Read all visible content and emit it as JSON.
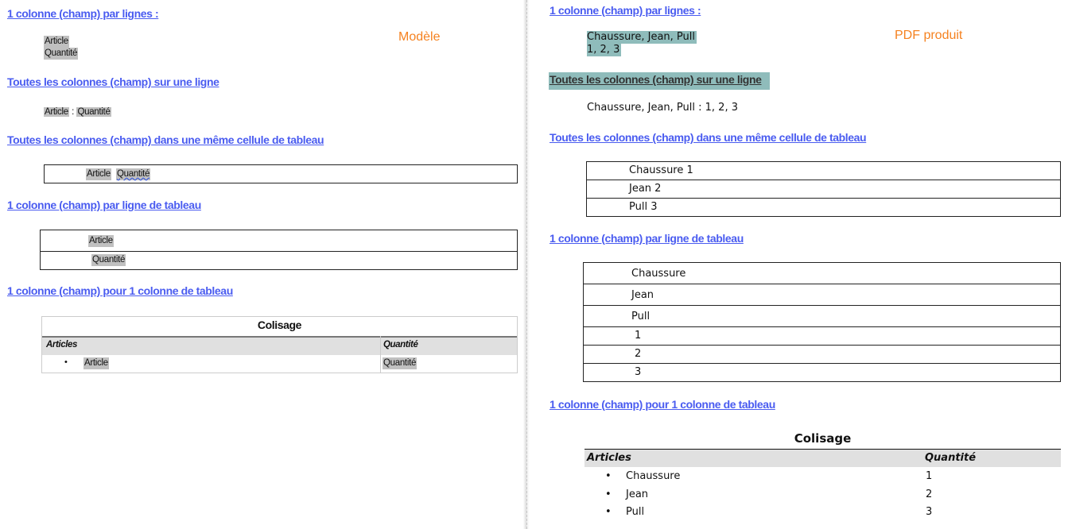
{
  "template": {
    "label": "Modèle",
    "sections": [
      {
        "heading": "1 colonne (champ) par lignes :",
        "fields": [
          "Article",
          "Quantité"
        ]
      },
      {
        "heading": "Toutes les colonnes (champ) sur une ligne",
        "field_a": "Article",
        "separator": ":",
        "field_b": "Quantité"
      },
      {
        "heading": "Toutes les colonnes (champ) dans une même cellule de tableau",
        "field_a": "Article",
        "field_b": "Quantité"
      },
      {
        "heading": "1 colonne (champ) par ligne de tableau",
        "rows": [
          "Article",
          "Quantité"
        ]
      },
      {
        "heading": "1 colonne (champ) pour 1 colonne de tableau",
        "table_title": "Colisage",
        "columns": [
          "Articles",
          "Quantité"
        ],
        "row": {
          "bullet": "•",
          "article": "Article",
          "quantity": "Quantité"
        }
      }
    ]
  },
  "output": {
    "label": "PDF produit",
    "sections": [
      {
        "heading": "1 colonne (champ) par lignes :",
        "lines": [
          "Chaussure, Jean, Pull",
          "1, 2, 3"
        ]
      },
      {
        "heading": "Toutes les colonnes (champ) sur une ligne",
        "line": "Chaussure, Jean, Pull : 1, 2, 3"
      },
      {
        "heading": "Toutes les colonnes (champ) dans une même cellule de tableau",
        "rows": [
          "Chaussure  1",
          "Jean  2",
          "Pull  3"
        ]
      },
      {
        "heading": "1 colonne (champ) par ligne de tableau",
        "rows": [
          "Chaussure",
          "Jean",
          "Pull",
          "1",
          "2",
          "3"
        ]
      },
      {
        "heading": "1 colonne (champ) pour 1 colonne de tableau",
        "table_title": "Colisage",
        "columns": [
          "Articles",
          "Quantité"
        ],
        "rows": [
          {
            "bullet": "•",
            "article": "Chaussure",
            "quantity": "1"
          },
          {
            "bullet": "•",
            "article": "Jean",
            "quantity": "2"
          },
          {
            "bullet": "•",
            "article": "Pull",
            "quantity": "3"
          }
        ]
      }
    ]
  },
  "colors": {
    "heading": "#4a5cf0",
    "label": "#f58220",
    "highlight": "#8fbcbb",
    "field": "#c0c0c0"
  }
}
